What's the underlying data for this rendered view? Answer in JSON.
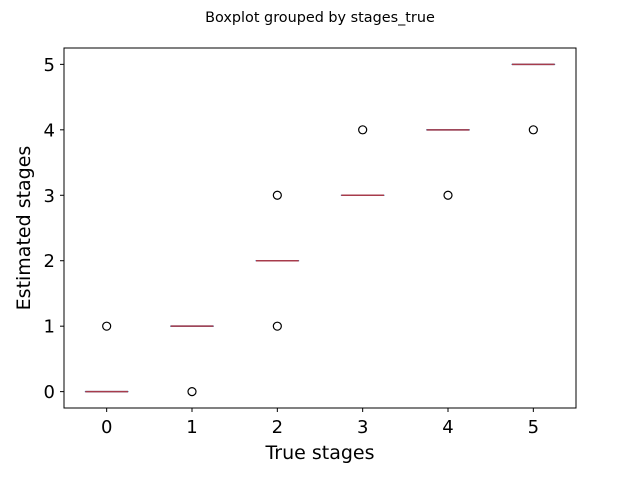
{
  "chart_data": {
    "type": "boxplot",
    "title": "Boxplot grouped by stages_true",
    "xlabel": "True stages",
    "ylabel": "Estimated stages",
    "categories": [
      "0",
      "1",
      "2",
      "3",
      "4",
      "5"
    ],
    "x_values": [
      0,
      1,
      2,
      3,
      4,
      5
    ],
    "yticks": [
      0,
      1,
      2,
      3,
      4,
      5
    ],
    "ylim": [
      -0.25,
      5.25
    ],
    "xlim": [
      -0.5,
      5.5
    ],
    "grid": false,
    "legend": "none",
    "boxes": [
      {
        "category": "0",
        "q1": 0,
        "median": 0,
        "q3": 0,
        "whisker_low": 0,
        "whisker_high": 0,
        "outliers": [
          1
        ]
      },
      {
        "category": "1",
        "q1": 1,
        "median": 1,
        "q3": 1,
        "whisker_low": 1,
        "whisker_high": 1,
        "outliers": [
          0
        ]
      },
      {
        "category": "2",
        "q1": 2,
        "median": 2,
        "q3": 2,
        "whisker_low": 2,
        "whisker_high": 2,
        "outliers": [
          1,
          3
        ]
      },
      {
        "category": "3",
        "q1": 3,
        "median": 3,
        "q3": 3,
        "whisker_low": 3,
        "whisker_high": 3,
        "outliers": [
          4
        ]
      },
      {
        "category": "4",
        "q1": 4,
        "median": 4,
        "q3": 4,
        "whisker_low": 4,
        "whisker_high": 4,
        "outliers": [
          3
        ]
      },
      {
        "category": "5",
        "q1": 5,
        "median": 5,
        "q3": 5,
        "whisker_low": 5,
        "whisker_high": 5,
        "outliers": [
          4
        ]
      }
    ],
    "colors": {
      "box": "#1f77b4",
      "median": "#d62728",
      "outlier_edge": "#000000",
      "axes": "#000000"
    }
  }
}
